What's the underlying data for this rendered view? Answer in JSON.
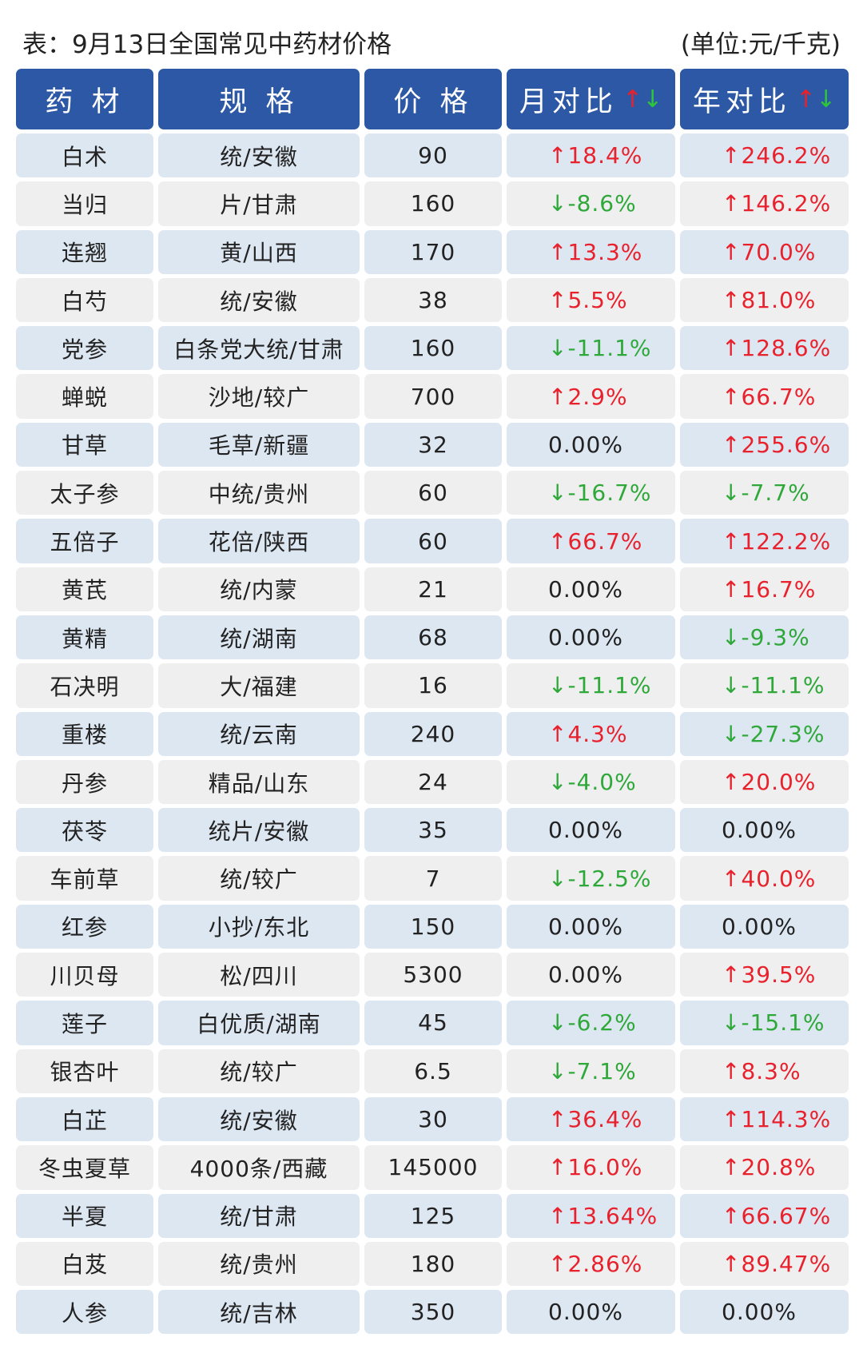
{
  "title": "表：9月13日全国常见中药材价格",
  "unit": "(单位:元/千克)",
  "headers": [
    "药  材",
    "规  格",
    "价  格",
    "月对比",
    "年对比"
  ],
  "header_arrows": {
    "up": "↑",
    "down": "↓"
  },
  "colors": {
    "header_bg": "#2c58a5",
    "up": "#e8212c",
    "down": "#2fa83a",
    "row_blue": "#dde7f2",
    "row_gray": "#efefef"
  },
  "rows": [
    {
      "name": "白术",
      "spec": "统/安徽",
      "price": "90",
      "mom": "↑18.4%",
      "yoy": "↑246.2%"
    },
    {
      "name": "当归",
      "spec": "片/甘肃",
      "price": "160",
      "mom": "↓-8.6%",
      "yoy": "↑146.2%"
    },
    {
      "name": "连翘",
      "spec": "黄/山西",
      "price": "170",
      "mom": "↑13.3%",
      "yoy": "↑70.0%"
    },
    {
      "name": "白芍",
      "spec": "统/安徽",
      "price": "38",
      "mom": "↑5.5%",
      "yoy": "↑81.0%"
    },
    {
      "name": "党参",
      "spec": "白条党大统/甘肃",
      "price": "160",
      "mom": "↓-11.1%",
      "yoy": "↑128.6%"
    },
    {
      "name": "蝉蜕",
      "spec": "沙地/较广",
      "price": "700",
      "mom": "↑2.9%",
      "yoy": "↑66.7%"
    },
    {
      "name": "甘草",
      "spec": "毛草/新疆",
      "price": "32",
      "mom": "0.00%",
      "yoy": "↑255.6%"
    },
    {
      "name": "太子参",
      "spec": "中统/贵州",
      "price": "60",
      "mom": "↓-16.7%",
      "yoy": "↓-7.7%"
    },
    {
      "name": "五倍子",
      "spec": "花倍/陕西",
      "price": "60",
      "mom": "↑66.7%",
      "yoy": "↑122.2%"
    },
    {
      "name": "黄芪",
      "spec": "统/内蒙",
      "price": "21",
      "mom": "0.00%",
      "yoy": "↑16.7%"
    },
    {
      "name": "黄精",
      "spec": "统/湖南",
      "price": "68",
      "mom": "0.00%",
      "yoy": "↓-9.3%"
    },
    {
      "name": "石决明",
      "spec": "大/福建",
      "price": "16",
      "mom": "↓-11.1%",
      "yoy": "↓-11.1%"
    },
    {
      "name": "重楼",
      "spec": "统/云南",
      "price": "240",
      "mom": "↑4.3%",
      "yoy": "↓-27.3%"
    },
    {
      "name": "丹参",
      "spec": "精品/山东",
      "price": "24",
      "mom": "↓-4.0%",
      "yoy": "↑20.0%"
    },
    {
      "name": "茯苓",
      "spec": "统片/安徽",
      "price": "35",
      "mom": "0.00%",
      "yoy": "0.00%"
    },
    {
      "name": "车前草",
      "spec": "统/较广",
      "price": "7",
      "mom": "↓-12.5%",
      "yoy": "↑40.0%"
    },
    {
      "name": "红参",
      "spec": "小抄/东北",
      "price": "150",
      "mom": "0.00%",
      "yoy": "0.00%"
    },
    {
      "name": "川贝母",
      "spec": "松/四川",
      "price": "5300",
      "mom": "0.00%",
      "yoy": "↑39.5%"
    },
    {
      "name": "莲子",
      "spec": "白优质/湖南",
      "price": "45",
      "mom": "↓-6.2%",
      "yoy": "↓-15.1%"
    },
    {
      "name": "银杏叶",
      "spec": "统/较广",
      "price": "6.5",
      "mom": "↓-7.1%",
      "yoy": "↑8.3%"
    },
    {
      "name": "白芷",
      "spec": "统/安徽",
      "price": "30",
      "mom": "↑36.4%",
      "yoy": "↑114.3%"
    },
    {
      "name": "冬虫夏草",
      "spec": "4000条/西藏",
      "price": "145000",
      "mom": "↑16.0%",
      "yoy": "↑20.8%"
    },
    {
      "name": "半夏",
      "spec": "统/甘肃",
      "price": "125",
      "mom": "↑13.64%",
      "yoy": "↑66.67%"
    },
    {
      "name": "白芨",
      "spec": "统/贵州",
      "price": "180",
      "mom": "↑2.86%",
      "yoy": "↑89.47%"
    },
    {
      "name": "人参",
      "spec": "统/吉林",
      "price": "350",
      "mom": "0.00%",
      "yoy": "0.00%"
    }
  ]
}
